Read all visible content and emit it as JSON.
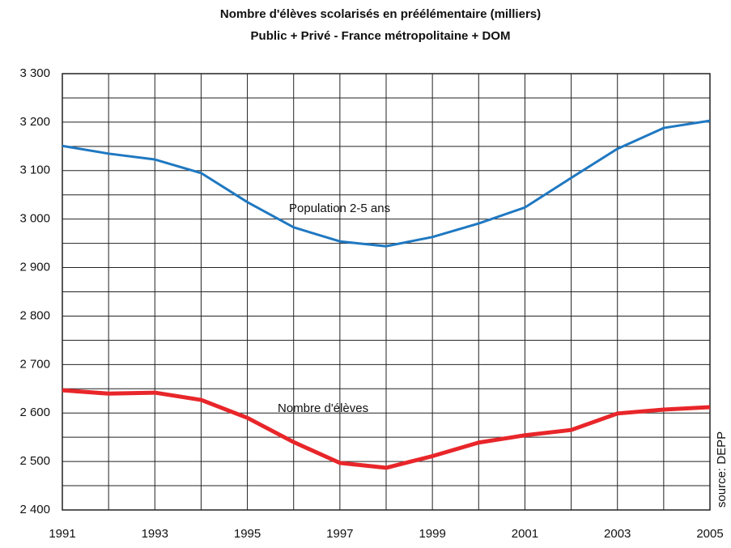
{
  "chart_data": {
    "type": "line",
    "title": "Nombre d'élèves scolarisés en préélémentaire (milliers)",
    "subtitle": "Public + Privé - France métropolitaine + DOM",
    "source": "source: DEPP",
    "x": [
      1991,
      1992,
      1993,
      1994,
      1995,
      1996,
      1997,
      1998,
      1999,
      2000,
      2001,
      2002,
      2003,
      2004,
      2005
    ],
    "series": [
      {
        "name": "Population 2-5 ans",
        "color": "#1f78c1",
        "values": [
          3151,
          3135,
          3123,
          3095,
          3035,
          2983,
          2954,
          2944,
          2963,
          2991,
          3024,
          3085,
          3145,
          3188,
          3203
        ]
      },
      {
        "name": "Nombre d'élèves",
        "color": "#e8262a",
        "values": [
          2647,
          2640,
          2642,
          2627,
          2590,
          2540,
          2497,
          2487,
          2511,
          2539,
          2554,
          2565,
          2599,
          2607,
          2612
        ]
      }
    ],
    "xlim": [
      1991,
      2005
    ],
    "xticks": [
      1991,
      1993,
      1995,
      1997,
      1999,
      2001,
      2003,
      2005
    ],
    "xminor": [
      1992,
      1994,
      1996,
      1998,
      2000,
      2002,
      2004
    ],
    "ylim": [
      2400,
      3300
    ],
    "yticks": [
      {
        "value": 2400,
        "label": "2 400"
      },
      {
        "value": 2500,
        "label": "2 500"
      },
      {
        "value": 2600,
        "label": "2 600"
      },
      {
        "value": 2700,
        "label": "2 700"
      },
      {
        "value": 2800,
        "label": "2 800"
      },
      {
        "value": 2900,
        "label": "2 900"
      },
      {
        "value": 3000,
        "label": "3 000"
      },
      {
        "value": 3100,
        "label": "3 100"
      },
      {
        "value": 3200,
        "label": "3 200"
      },
      {
        "value": 3300,
        "label": "3 300"
      }
    ],
    "yminor": [
      2450,
      2550,
      2650,
      2750,
      2850,
      2950,
      3050,
      3150,
      3250
    ],
    "grid": true
  }
}
